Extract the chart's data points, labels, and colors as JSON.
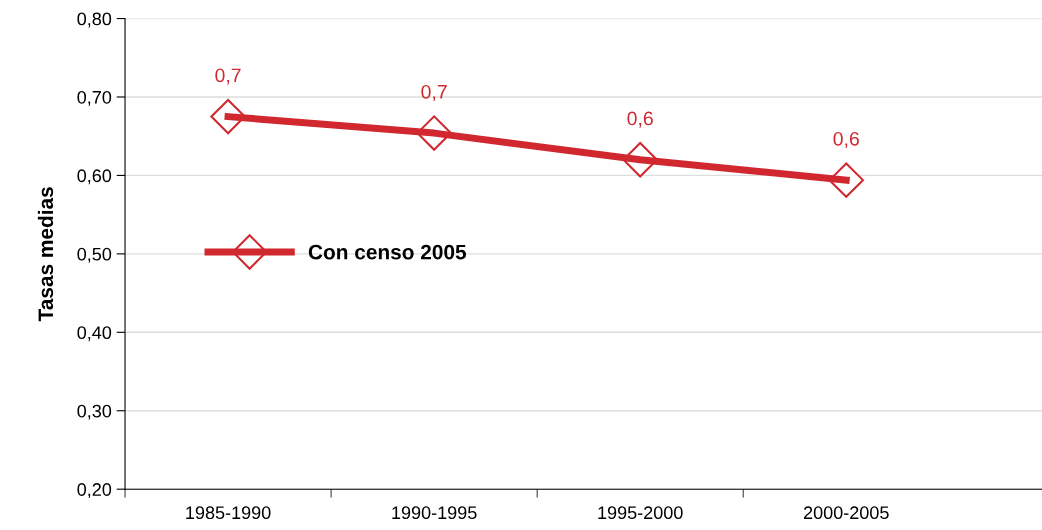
{
  "chart_data": {
    "type": "line",
    "ylabel": "Tasas medias",
    "categories": [
      "1985-1990",
      "1990-1995",
      "1995-2000",
      "2000-2005"
    ],
    "series": [
      {
        "name": "Con censo 2005",
        "color": "#d0282e",
        "values": [
          0.675,
          0.654,
          0.62,
          0.594
        ],
        "value_labels": [
          "0,7",
          "0,7",
          "0,6",
          "0,6"
        ]
      }
    ],
    "ylim": [
      0.2,
      0.8
    ],
    "yticks": [
      {
        "value": 0.2,
        "label": "0,20"
      },
      {
        "value": 0.3,
        "label": "0,30"
      },
      {
        "value": 0.4,
        "label": "0,40"
      },
      {
        "value": 0.5,
        "label": "0,50"
      },
      {
        "value": 0.6,
        "label": "0,60"
      },
      {
        "value": 0.7,
        "label": "0,70"
      },
      {
        "value": 0.8,
        "label": "0,80"
      }
    ],
    "grid": "y",
    "legend": "center left",
    "marker": "diamond",
    "line_style": "solid"
  }
}
